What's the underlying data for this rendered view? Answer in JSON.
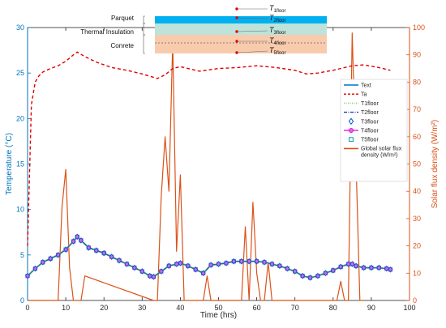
{
  "chart_data": {
    "type": "line",
    "xlabel": "Time (hrs)",
    "ylabel_left": "Temperature (°C)",
    "ylabel_right": "Solar flux density (W/m²)",
    "xlim": [
      0,
      100
    ],
    "ylim_left": [
      0,
      30
    ],
    "ylim_right": [
      0,
      100
    ],
    "x_ticks": [
      0,
      10,
      20,
      30,
      40,
      50,
      60,
      70,
      80,
      90,
      100
    ],
    "y_left_ticks": [
      0,
      5,
      10,
      15,
      20,
      25,
      30
    ],
    "y_right_ticks": [
      0,
      10,
      20,
      30,
      40,
      50,
      60,
      70,
      80,
      90,
      100
    ],
    "grid": false,
    "legend_placement": "right",
    "legend": [
      {
        "label": "Text",
        "color": "#0072BD",
        "style": "solid"
      },
      {
        "label": "Ta",
        "color": "#E00000",
        "style": "dashed"
      },
      {
        "label": "T1floor",
        "color": "#8FCB6C",
        "style": "dotted"
      },
      {
        "label": "T2floor",
        "color": "#1F3DC0",
        "style": "dashdot"
      },
      {
        "label": "T3floor",
        "color": "#0055DD",
        "style": "diamond"
      },
      {
        "label": "T4floor",
        "color": "#E600E6",
        "style": "circle"
      },
      {
        "label": "T5floor",
        "color": "#0099AA",
        "style": "square"
      },
      {
        "label": "Global solar flux density (W/m²)",
        "color": "#D95319",
        "style": "solid"
      }
    ],
    "series": [
      {
        "name": "Ta",
        "axis": "left",
        "color": "#E00000",
        "x": [
          0,
          1,
          2,
          3,
          4,
          6,
          8,
          10,
          12,
          13,
          15,
          18,
          22,
          26,
          30,
          34,
          36,
          38,
          40,
          42,
          45,
          50,
          55,
          60,
          65,
          70,
          73,
          76,
          80,
          85,
          88,
          92,
          95
        ],
        "y": [
          6,
          21.5,
          24,
          24.7,
          25.1,
          25.5,
          25.8,
          26.3,
          27,
          27.3,
          26.8,
          26.2,
          25.6,
          25.3,
          24.9,
          24.4,
          24.8,
          25.5,
          25.7,
          25.5,
          25.2,
          25.5,
          25.6,
          25.8,
          25.6,
          25.3,
          24.9,
          25.0,
          25.3,
          25.8,
          25.9,
          25.6,
          25.3
        ]
      },
      {
        "name": "Text",
        "axis": "left",
        "color": "#0072BD",
        "x": [
          0,
          2,
          4,
          6,
          8,
          10,
          12,
          13,
          14,
          16,
          18,
          20,
          22,
          24,
          26,
          28,
          30,
          32,
          33,
          35,
          37,
          39,
          40,
          42,
          44,
          46,
          48,
          50,
          52,
          54,
          56,
          58,
          60,
          62,
          64,
          66,
          68,
          70,
          72,
          74,
          76,
          78,
          80,
          82,
          84,
          85,
          86,
          88,
          90,
          92,
          94,
          95
        ],
        "y": [
          2.7,
          3.5,
          4.2,
          4.6,
          5.0,
          5.6,
          6.5,
          7.0,
          6.6,
          5.8,
          5.5,
          5.2,
          4.8,
          4.4,
          4.0,
          3.6,
          3.2,
          2.7,
          2.6,
          3.2,
          3.8,
          4.0,
          4.1,
          3.8,
          3.4,
          3.0,
          3.9,
          4.0,
          4.1,
          4.3,
          4.3,
          4.3,
          4.3,
          4.2,
          4.0,
          3.8,
          3.5,
          3.2,
          2.7,
          2.5,
          2.7,
          3.0,
          3.3,
          3.7,
          4.0,
          4.0,
          3.8,
          3.6,
          3.6,
          3.6,
          3.5,
          3.4
        ]
      },
      {
        "name": "Global solar flux density (W/m²)",
        "axis": "right",
        "color": "#D95319",
        "x": [
          0,
          8,
          9,
          10,
          11,
          12,
          13,
          14,
          15,
          33,
          34,
          35,
          36,
          37,
          38,
          39,
          40,
          41,
          42,
          46,
          47,
          48,
          55,
          56,
          57,
          58,
          59,
          60,
          61,
          62,
          63,
          64,
          80,
          81,
          82,
          83,
          84,
          85,
          86,
          87,
          88
        ],
        "y": [
          0,
          0,
          34,
          48,
          12,
          0,
          0,
          0,
          9,
          0,
          0,
          38,
          60,
          40,
          95,
          18,
          46,
          0,
          0,
          0,
          9,
          0,
          0,
          0,
          27,
          0,
          36,
          10,
          0,
          0,
          14,
          0,
          0,
          0,
          7,
          0,
          0,
          98,
          50,
          0,
          0
        ]
      }
    ],
    "inset_diagram": {
      "layers": [
        "Parquet",
        "Thermal Insulation",
        "Conrete"
      ],
      "layer_colors": [
        "#00B0F0",
        "#BDE3DA",
        "#F8CBAD"
      ],
      "sensor_labels": [
        "T1floor",
        "T2floor",
        "T3floor",
        "T4floor",
        "T5floor"
      ]
    }
  }
}
